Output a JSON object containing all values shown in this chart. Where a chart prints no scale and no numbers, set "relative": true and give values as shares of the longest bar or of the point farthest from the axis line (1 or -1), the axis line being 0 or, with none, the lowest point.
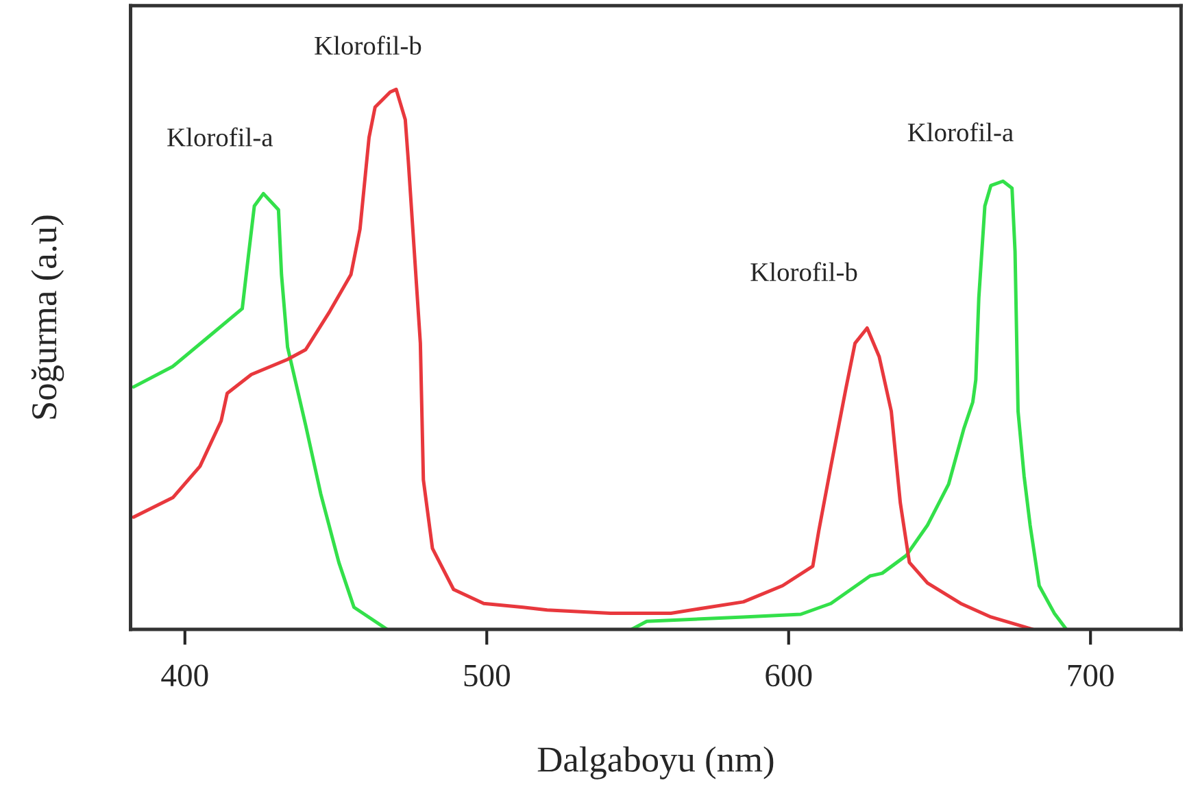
{
  "chart_data": {
    "type": "line",
    "relative": true,
    "xlabel": "Dalgaboyu (nm)",
    "ylabel": "Soğurma (a.u)",
    "xlim": [
      382,
      730
    ],
    "xticks": [
      400,
      500,
      600,
      700
    ],
    "tick_labels": "x",
    "grid": false,
    "series": [
      {
        "color": "#33e04a",
        "x": [
          383,
          396,
          407,
          419,
          421,
          423,
          426,
          431,
          432,
          434,
          440,
          445,
          451,
          456,
          467,
          480,
          548,
          553,
          585,
          604,
          614,
          627,
          631,
          639,
          646,
          653,
          658,
          661,
          662,
          663,
          665,
          667,
          671,
          674,
          675,
          676,
          678,
          680,
          683,
          688,
          692
        ],
        "values": [
          0.449,
          0.487,
          0.538,
          0.594,
          0.69,
          0.784,
          0.807,
          0.777,
          0.657,
          0.523,
          0.378,
          0.251,
          0.124,
          0.041,
          0,
          null,
          0,
          0.015,
          0.023,
          0.028,
          0.048,
          0.099,
          0.104,
          0.137,
          0.193,
          0.269,
          0.371,
          0.421,
          0.462,
          0.614,
          0.784,
          0.822,
          0.83,
          0.817,
          0.7,
          0.404,
          0.284,
          0.193,
          0.081,
          0.03,
          0
        ]
      },
      {
        "color": "#e8383d",
        "x": [
          383,
          396,
          405,
          412,
          414,
          422,
          434,
          440,
          448,
          455,
          458,
          461,
          463,
          468,
          470,
          473,
          474,
          478,
          479,
          482,
          489,
          499,
          512,
          520,
          541,
          561,
          585,
          598,
          608,
          610,
          614,
          619,
          622,
          626,
          630,
          634,
          637,
          640,
          646,
          657,
          667,
          681
        ],
        "values": [
          0.208,
          0.244,
          0.302,
          0.386,
          0.437,
          0.472,
          0.5,
          0.518,
          0.589,
          0.657,
          0.741,
          0.911,
          0.967,
          0.995,
          1,
          0.944,
          0.868,
          0.53,
          0.277,
          0.15,
          0.074,
          0.048,
          0.041,
          0.036,
          0.03,
          0.03,
          0.051,
          0.081,
          0.117,
          0.183,
          0.302,
          0.447,
          0.53,
          0.558,
          0.505,
          0.404,
          0.234,
          0.124,
          0.086,
          0.048,
          0.023,
          0
        ]
      }
    ],
    "annotations": [
      "Klorofil-a",
      "Klorofil-b",
      "Klorofil-b",
      "Klorofil-a"
    ]
  }
}
